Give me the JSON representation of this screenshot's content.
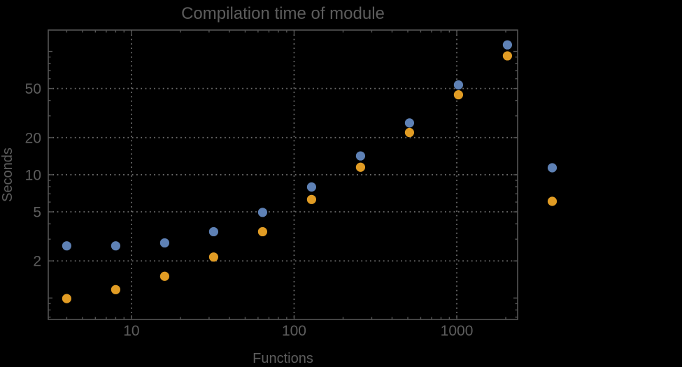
{
  "chart_data": {
    "type": "scatter",
    "title": "Compilation time of module",
    "xlabel": "Functions",
    "ylabel": "Seconds",
    "xscale": "log",
    "yscale": "log",
    "xlim": [
      3.08,
      2366
    ],
    "ylim": [
      0.67,
      149
    ],
    "x": [
      4,
      8,
      16,
      32,
      64,
      128,
      256,
      512,
      1024,
      2048
    ],
    "series": [
      {
        "name": "series-1",
        "color": "#5e81b5",
        "values": [
          2.65,
          2.65,
          2.8,
          3.45,
          4.95,
          7.95,
          14.2,
          26.3,
          53.5,
          113
        ]
      },
      {
        "name": "series-2",
        "color": "#e19c24",
        "values": [
          0.99,
          1.17,
          1.5,
          2.15,
          3.45,
          6.3,
          11.5,
          22,
          44.5,
          92
        ]
      }
    ],
    "x_ticks": [
      {
        "v": 10,
        "label": "10"
      },
      {
        "v": 100,
        "label": "100"
      },
      {
        "v": 1000,
        "label": "1000"
      }
    ],
    "y_ticks": [
      {
        "v": 2,
        "label": "2"
      },
      {
        "v": 5,
        "label": "5"
      },
      {
        "v": 10,
        "label": "10"
      },
      {
        "v": 20,
        "label": "20"
      },
      {
        "v": 50,
        "label": "50"
      }
    ],
    "y_major_unlabeled": [
      1,
      100
    ],
    "grid": {
      "x_values": [
        10,
        100,
        1000
      ],
      "y_values": [
        2,
        5,
        10,
        20,
        50
      ],
      "style": "dotted",
      "color": "#6b6b6b"
    },
    "legend": {
      "position": "right-outside",
      "markers": [
        {
          "series": "series-1",
          "color": "#5e81b5"
        },
        {
          "series": "series-2",
          "color": "#e19c24"
        }
      ]
    },
    "marker": {
      "shape": "circle",
      "radius": 6.6
    },
    "background": "#000000",
    "text_color": "#5d5d5d",
    "frame_color": "#555555"
  }
}
